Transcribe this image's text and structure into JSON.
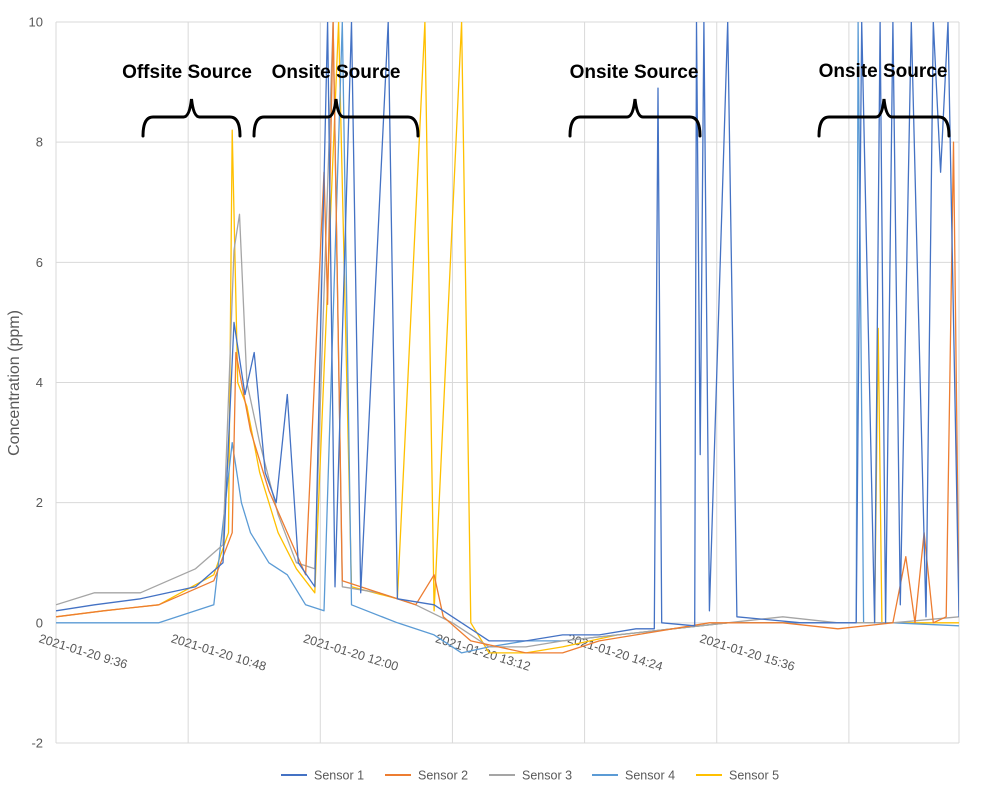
{
  "chart_data": {
    "type": "line",
    "title": "",
    "xlabel": "",
    "ylabel": "Concentration (ppm)",
    "ylim": [
      -2,
      10
    ],
    "yticks": [
      -2,
      0,
      2,
      4,
      6,
      8,
      10
    ],
    "xlim": [
      "2021-01-20 8:24",
      "2021-01-20 16:36"
    ],
    "x_tick_labels": [
      "2021-01-20 9:36",
      "2021-01-20 10:48",
      "2021-01-20 12:00",
      "2021-01-20 13:12",
      "2021-01-20 14:24",
      "2021-01-20 15:36"
    ],
    "grid": true,
    "legend": "bottom",
    "annotations": [
      "Offsite Source",
      "Onsite Source",
      "Onsite Source",
      "Onsite Source"
    ],
    "series": [
      {
        "name": "Sensor 1",
        "color": "#4472C4",
        "points": [
          [
            "8:24",
            0.2
          ],
          [
            "8:45",
            0.3
          ],
          [
            "9:10",
            0.4
          ],
          [
            "9:40",
            0.6
          ],
          [
            "9:55",
            1.0
          ],
          [
            "10:01",
            5.0
          ],
          [
            "10:07",
            3.8
          ],
          [
            "10:12",
            4.5
          ],
          [
            "10:18",
            2.5
          ],
          [
            "10:24",
            2.0
          ],
          [
            "10:30",
            3.8
          ],
          [
            "10:36",
            1.0
          ],
          [
            "10:45",
            0.6
          ],
          [
            "10:52",
            10
          ],
          [
            "10:56",
            0.6
          ],
          [
            "11:05",
            10
          ],
          [
            "11:10",
            0.5
          ],
          [
            "11:25",
            10
          ],
          [
            "11:30",
            0.4
          ],
          [
            "11:50",
            0.3
          ],
          [
            "12:00",
            0.1
          ],
          [
            "12:20",
            -0.3
          ],
          [
            "12:40",
            -0.3
          ],
          [
            "13:00",
            -0.2
          ],
          [
            "13:20",
            -0.2
          ],
          [
            "13:40",
            -0.1
          ],
          [
            "13:50",
            -0.1
          ],
          [
            "13:52",
            8.9
          ],
          [
            "13:54",
            0.0
          ],
          [
            "14:12",
            -0.05
          ],
          [
            "14:13",
            10
          ],
          [
            "14:15",
            2.8
          ],
          [
            "14:17",
            10
          ],
          [
            "14:20",
            0.2
          ],
          [
            "14:30",
            10
          ],
          [
            "14:35",
            0.1
          ],
          [
            "15:10",
            0.0
          ],
          [
            "15:40",
            0.0
          ],
          [
            "15:43",
            10
          ],
          [
            "15:50",
            0.0
          ],
          [
            "15:53",
            10
          ],
          [
            "15:56",
            0.0
          ],
          [
            "16:00",
            10
          ],
          [
            "16:04",
            0.3
          ],
          [
            "16:10",
            10
          ],
          [
            "16:18",
            0.1
          ],
          [
            "16:22",
            10
          ],
          [
            "16:26",
            7.5
          ],
          [
            "16:30",
            10
          ],
          [
            "16:36",
            0.1
          ]
        ]
      },
      {
        "name": "Sensor 2",
        "color": "#ED7D31",
        "points": [
          [
            "8:24",
            0.1
          ],
          [
            "8:50",
            0.2
          ],
          [
            "9:20",
            0.3
          ],
          [
            "9:50",
            0.7
          ],
          [
            "10:00",
            1.5
          ],
          [
            "10:02",
            4.5
          ],
          [
            "10:10",
            3.2
          ],
          [
            "10:20",
            2.2
          ],
          [
            "10:30",
            1.5
          ],
          [
            "10:40",
            0.8
          ],
          [
            "10:50",
            7.5
          ],
          [
            "10:52",
            5.3
          ],
          [
            "10:55",
            10
          ],
          [
            "11:00",
            0.7
          ],
          [
            "11:20",
            0.5
          ],
          [
            "11:40",
            0.3
          ],
          [
            "11:50",
            0.8
          ],
          [
            "11:55",
            0.1
          ],
          [
            "12:10",
            -0.3
          ],
          [
            "12:40",
            -0.5
          ],
          [
            "13:00",
            -0.5
          ],
          [
            "13:20",
            -0.3
          ],
          [
            "13:40",
            -0.2
          ],
          [
            "14:00",
            -0.1
          ],
          [
            "14:20",
            0.0
          ],
          [
            "14:40",
            0.0
          ],
          [
            "15:00",
            0.0
          ],
          [
            "15:30",
            -0.1
          ],
          [
            "16:00",
            0.0
          ],
          [
            "16:07",
            1.1
          ],
          [
            "16:12",
            0.0
          ],
          [
            "16:17",
            1.5
          ],
          [
            "16:22",
            0.0
          ],
          [
            "16:29",
            0.1
          ],
          [
            "16:33",
            8.0
          ],
          [
            "16:36",
            0.2
          ]
        ]
      },
      {
        "name": "Sensor 3",
        "color": "#A5A5A5",
        "points": [
          [
            "8:24",
            0.3
          ],
          [
            "8:45",
            0.5
          ],
          [
            "9:10",
            0.5
          ],
          [
            "9:40",
            0.9
          ],
          [
            "9:55",
            1.3
          ],
          [
            "10:01",
            6.2
          ],
          [
            "10:04",
            6.8
          ],
          [
            "10:08",
            4.0
          ],
          [
            "10:15",
            3.0
          ],
          [
            "10:25",
            1.8
          ],
          [
            "10:35",
            1.0
          ],
          [
            "10:45",
            0.9
          ],
          [
            "10:55",
            10
          ],
          [
            "11:00",
            0.6
          ],
          [
            "11:20",
            0.5
          ],
          [
            "11:40",
            0.3
          ],
          [
            "12:00",
            0.0
          ],
          [
            "12:20",
            -0.4
          ],
          [
            "12:40",
            -0.4
          ],
          [
            "13:00",
            -0.3
          ],
          [
            "13:30",
            -0.2
          ],
          [
            "14:00",
            -0.1
          ],
          [
            "14:30",
            0.0
          ],
          [
            "15:00",
            0.1
          ],
          [
            "15:30",
            0.0
          ],
          [
            "16:00",
            0.0
          ],
          [
            "16:36",
            0.1
          ]
        ]
      },
      {
        "name": "Sensor 4",
        "color": "#5B9BD5",
        "points": [
          [
            "8:24",
            0.0
          ],
          [
            "8:50",
            0.0
          ],
          [
            "9:20",
            0.0
          ],
          [
            "9:50",
            0.3
          ],
          [
            "10:00",
            3.0
          ],
          [
            "10:05",
            2.0
          ],
          [
            "10:10",
            1.5
          ],
          [
            "10:20",
            1.0
          ],
          [
            "10:30",
            0.8
          ],
          [
            "10:40",
            0.3
          ],
          [
            "10:50",
            0.2
          ],
          [
            "11:00",
            10
          ],
          [
            "11:05",
            0.3
          ],
          [
            "11:30",
            0.0
          ],
          [
            "11:50",
            -0.2
          ],
          [
            "12:05",
            -0.5
          ],
          [
            "12:20",
            -0.4
          ],
          [
            "12:40",
            -0.3
          ],
          [
            "13:00",
            -0.3
          ],
          [
            "13:30",
            -0.2
          ],
          [
            "14:00",
            -0.1
          ],
          [
            "14:30",
            0.0
          ],
          [
            "15:00",
            0.0
          ],
          [
            "15:30",
            0.0
          ],
          [
            "15:40",
            0.0
          ],
          [
            "15:41",
            10
          ],
          [
            "15:44",
            0.0
          ],
          [
            "16:00",
            0.0
          ],
          [
            "16:36",
            -0.05
          ]
        ]
      },
      {
        "name": "Sensor 5",
        "color": "#FFC000",
        "points": [
          [
            "8:24",
            0.1
          ],
          [
            "8:50",
            0.2
          ],
          [
            "9:20",
            0.3
          ],
          [
            "9:50",
            0.8
          ],
          [
            "9:58",
            1.5
          ],
          [
            "10:00",
            8.2
          ],
          [
            "10:03",
            4.0
          ],
          [
            "10:08",
            3.6
          ],
          [
            "10:15",
            2.5
          ],
          [
            "10:25",
            1.5
          ],
          [
            "10:35",
            0.9
          ],
          [
            "10:45",
            0.5
          ],
          [
            "10:58",
            10
          ],
          [
            "11:05",
            0.6
          ],
          [
            "11:30",
            0.4
          ],
          [
            "11:45",
            10
          ],
          [
            "11:50",
            0.2
          ],
          [
            "12:05",
            10
          ],
          [
            "12:10",
            0.0
          ],
          [
            "12:20",
            -0.5
          ],
          [
            "12:40",
            -0.5
          ],
          [
            "13:00",
            -0.4
          ],
          [
            "13:30",
            -0.2
          ],
          [
            "14:00",
            -0.1
          ],
          [
            "14:30",
            0.0
          ],
          [
            "15:00",
            0.0
          ],
          [
            "15:30",
            0.0
          ],
          [
            "15:50",
            0.0
          ],
          [
            "15:52",
            4.9
          ],
          [
            "15:54",
            0.0
          ],
          [
            "16:36",
            0.0
          ]
        ]
      }
    ]
  }
}
